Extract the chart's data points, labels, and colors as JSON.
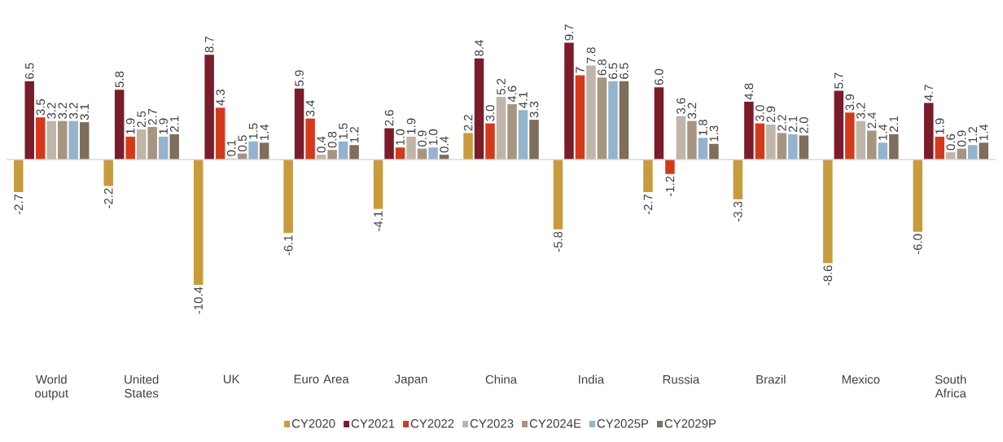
{
  "chart_data": {
    "type": "bar",
    "categories": [
      "World output",
      "United States",
      "UK",
      "Euro Area",
      "Japan",
      "China",
      "India",
      "Russia",
      "Brazil",
      "Mexico",
      "South Africa"
    ],
    "series": [
      {
        "name": "CY2020",
        "color": "#c89b3c",
        "values": [
          -2.7,
          -2.2,
          -10.4,
          -6.1,
          -4.1,
          2.2,
          -5.8,
          -2.7,
          -3.3,
          -8.6,
          -6.0
        ],
        "value_labels": [
          "-2.7",
          "-2.2",
          "-10.4",
          "-6.1",
          "-4.1",
          "2.2",
          "-5.8",
          "-2.7",
          "-3.3",
          "-8.6",
          "-6.0"
        ]
      },
      {
        "name": "CY2021",
        "color": "#7b1c2a",
        "values": [
          6.5,
          5.8,
          8.7,
          5.9,
          2.6,
          8.4,
          9.7,
          6.0,
          4.8,
          5.7,
          4.7
        ],
        "value_labels": [
          "6.5",
          "5.8",
          "8.7",
          "5.9",
          "2.6",
          "8.4",
          "9.7",
          "6.0",
          "4.8",
          "5.7",
          "4.7"
        ]
      },
      {
        "name": "CY2022",
        "color": "#d6391a",
        "values": [
          3.5,
          1.9,
          4.3,
          3.4,
          1.0,
          3.0,
          7,
          -1.2,
          3.0,
          3.9,
          1.9
        ],
        "value_labels": [
          "3.5",
          "1.9",
          "4.3",
          "3.4",
          "1.0",
          "3.0",
          "7",
          "-1.2",
          "3.0",
          "3.9",
          "1.9"
        ]
      },
      {
        "name": "CY2023",
        "color": "#bfb5a8",
        "values": [
          3.2,
          2.5,
          0.1,
          0.4,
          1.9,
          5.2,
          7.8,
          3.6,
          2.9,
          3.2,
          0.6
        ],
        "value_labels": [
          "3.2",
          "2.5",
          "0.1",
          "0.4",
          "1.9",
          "5.2",
          "7.8",
          "3.6",
          "2.9",
          "3.2",
          "0.6"
        ]
      },
      {
        "name": "CY2024E",
        "color": "#a69580",
        "values": [
          3.2,
          2.7,
          0.5,
          0.8,
          0.9,
          4.6,
          6.8,
          3.2,
          2.2,
          2.4,
          0.9
        ],
        "value_labels": [
          "3.2",
          "2.7",
          "0.5",
          "0.8",
          "0.9",
          "4.6",
          "6.8",
          "3.2",
          "2.2",
          "2.4",
          "0.9"
        ]
      },
      {
        "name": "CY2025P",
        "color": "#94b3cd",
        "values": [
          3.2,
          1.9,
          1.5,
          1.5,
          1.0,
          4.1,
          6.5,
          1.8,
          2.1,
          1.4,
          1.2
        ],
        "value_labels": [
          "3.2",
          "1.9",
          "1.5",
          "1.5",
          "1.0",
          "4.1",
          "6.5",
          "1.8",
          "2.1",
          "1.4",
          "1.2"
        ]
      },
      {
        "name": "CY2029P",
        "color": "#7f6e5c",
        "values": [
          3.1,
          2.1,
          1.4,
          1.2,
          0.4,
          3.3,
          6.5,
          1.3,
          2.0,
          2.1,
          1.4
        ],
        "value_labels": [
          "3.1",
          "2.1",
          "1.4",
          "1.2",
          "0.4",
          "3.3",
          "6.5",
          "1.3",
          "2.0",
          "2.1",
          "1.4"
        ]
      }
    ],
    "legend": "bottom"
  }
}
